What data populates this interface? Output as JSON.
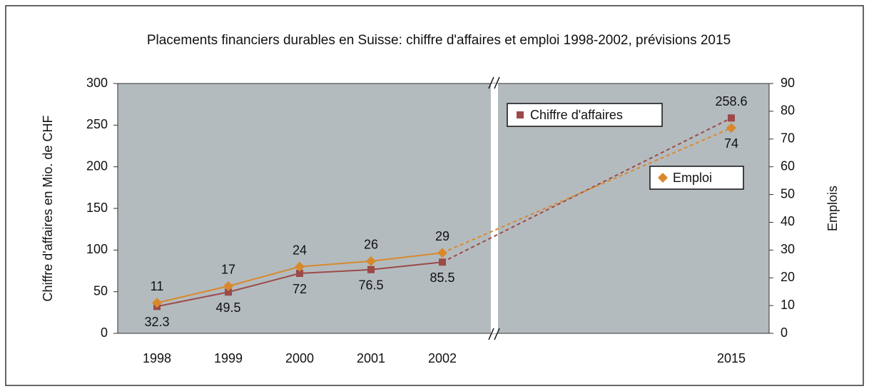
{
  "chart_data": {
    "type": "line",
    "title": "Placements financiers durables en Suisse: chiffre d'affaires et emploi 1998-2002, prévisions 2015",
    "ylabel": "Chiffre d'affaires en Mio. de CHF",
    "y2label": "Emplois",
    "categories": [
      "1998",
      "1999",
      "2000",
      "2001",
      "2002",
      "2015"
    ],
    "series": [
      {
        "name": "Chiffre d'affaires",
        "color": "#9b4a48",
        "marker": "square",
        "values": [
          32.3,
          49.5,
          72,
          76.5,
          85.5,
          258.6
        ]
      },
      {
        "name": "Emploi",
        "color": "#d8892c",
        "marker": "diamond",
        "axis": "y2",
        "values": [
          11,
          17,
          24,
          26,
          29,
          74
        ]
      }
    ],
    "ylim": [
      0,
      300
    ],
    "yticks": [
      0,
      50,
      100,
      150,
      200,
      250,
      300
    ],
    "y2lim": [
      0,
      90
    ],
    "y2ticks": [
      0,
      10,
      20,
      30,
      40,
      50,
      60,
      70,
      80,
      90
    ],
    "plot_background": "#b4bbbf"
  }
}
